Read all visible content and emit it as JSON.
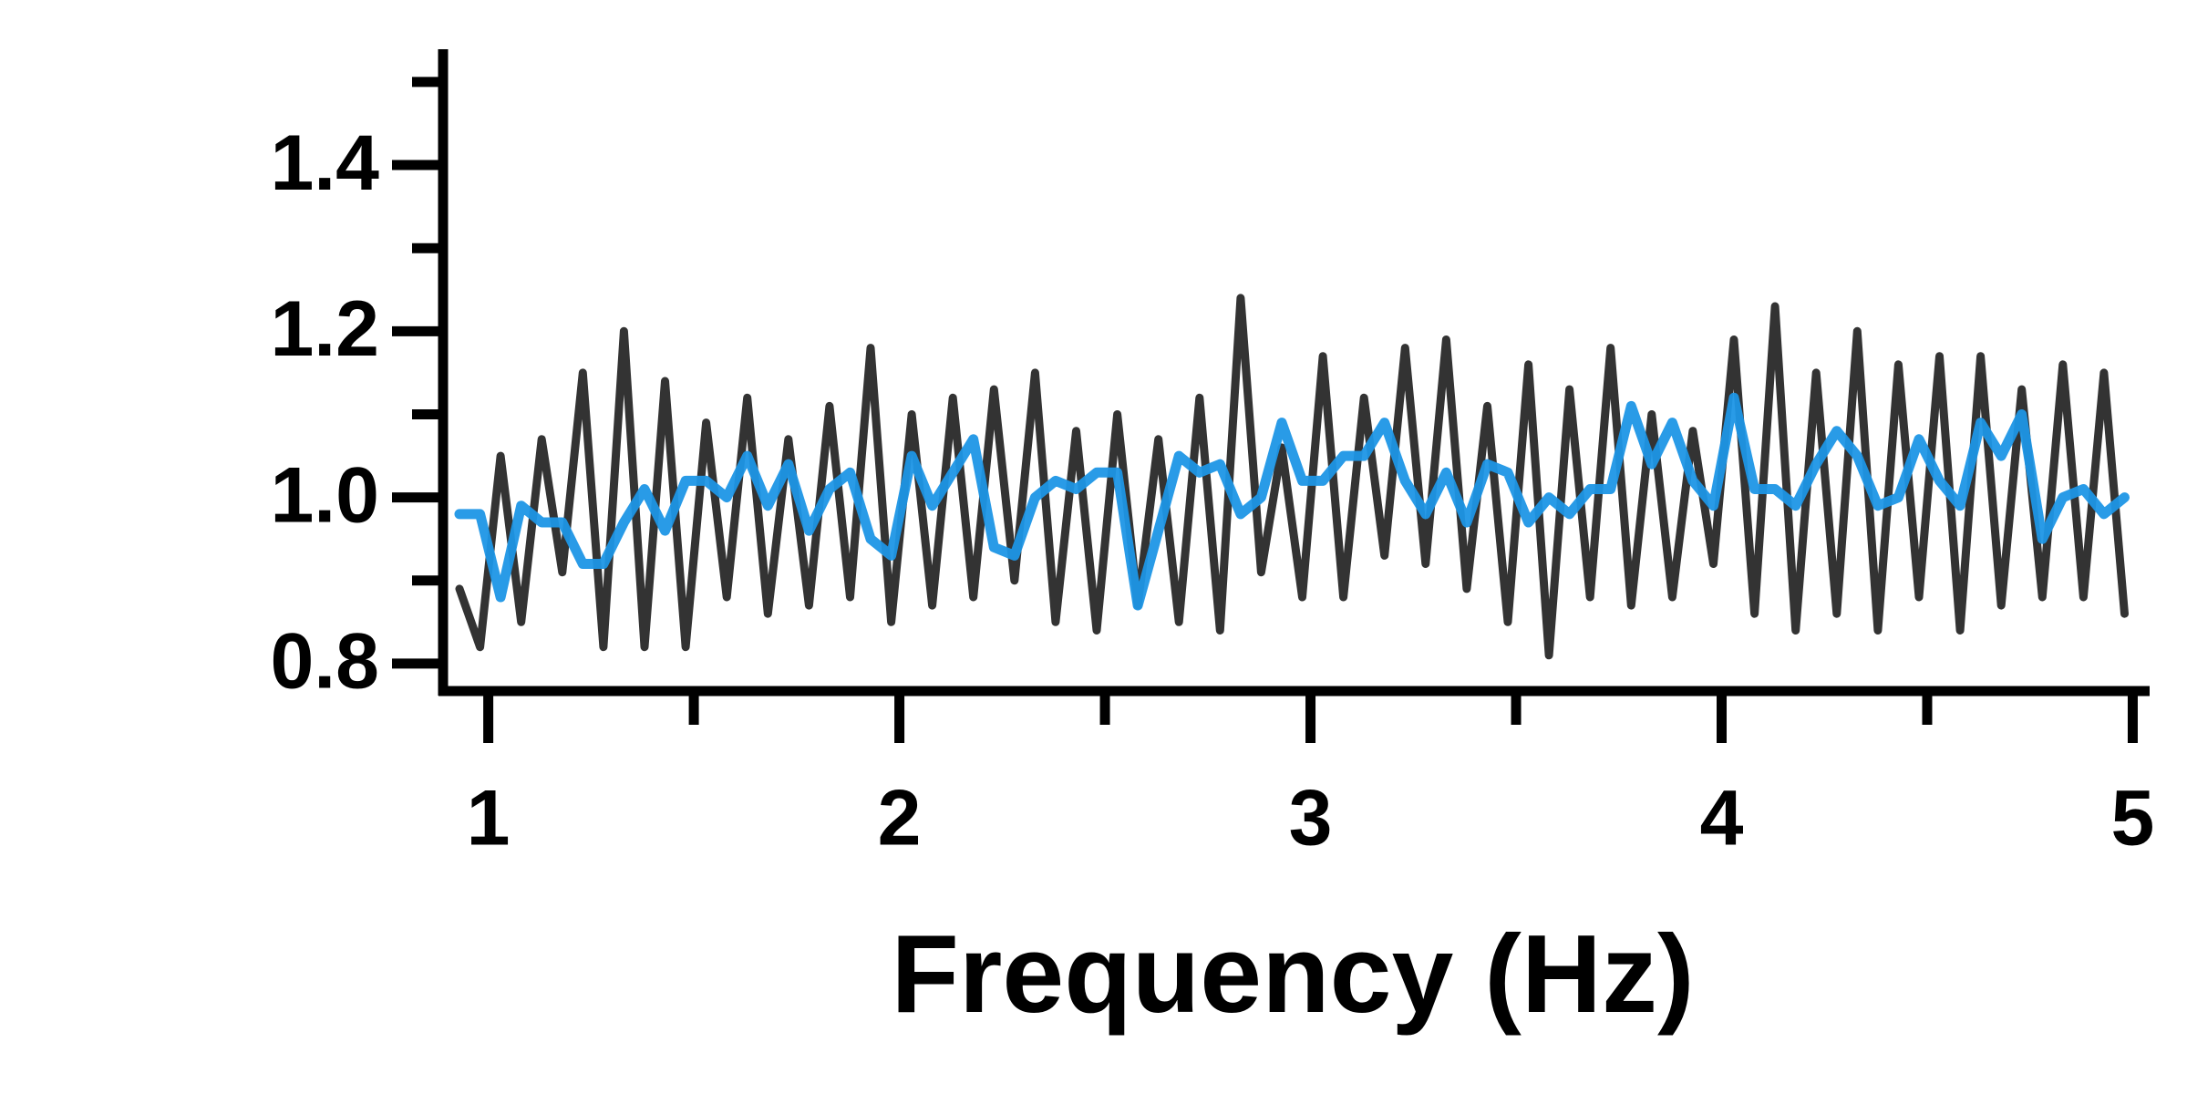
{
  "chart_data": {
    "type": "line",
    "x_label": "Frequency (Hz)",
    "x": [
      0.93,
      0.98,
      1.03,
      1.08,
      1.13,
      1.18,
      1.23,
      1.28,
      1.33,
      1.38,
      1.43,
      1.48,
      1.53,
      1.58,
      1.63,
      1.68,
      1.73,
      1.78,
      1.83,
      1.88,
      1.93,
      1.98,
      2.03,
      2.08,
      2.13,
      2.18,
      2.23,
      2.28,
      2.33,
      2.38,
      2.43,
      2.48,
      2.53,
      2.58,
      2.63,
      2.68,
      2.73,
      2.78,
      2.83,
      2.88,
      2.93,
      2.98,
      3.03,
      3.08,
      3.13,
      3.18,
      3.23,
      3.28,
      3.33,
      3.38,
      3.43,
      3.48,
      3.53,
      3.58,
      3.63,
      3.68,
      3.73,
      3.78,
      3.83,
      3.88,
      3.93,
      3.98,
      4.03,
      4.08,
      4.13,
      4.18,
      4.23,
      4.28,
      4.33,
      4.38,
      4.43,
      4.48,
      4.53,
      4.58,
      4.63,
      4.68,
      4.73,
      4.78,
      4.83,
      4.88,
      4.93,
      4.98
    ],
    "series": [
      {
        "color": "#333333",
        "values": [
          0.89,
          0.82,
          1.05,
          0.85,
          1.07,
          0.91,
          1.15,
          0.82,
          1.2,
          0.82,
          1.14,
          0.82,
          1.09,
          0.88,
          1.12,
          0.86,
          1.07,
          0.87,
          1.11,
          0.88,
          1.18,
          0.85,
          1.1,
          0.87,
          1.12,
          0.88,
          1.13,
          0.9,
          1.15,
          0.85,
          1.08,
          0.84,
          1.1,
          0.87,
          1.07,
          0.85,
          1.12,
          0.84,
          1.24,
          0.91,
          1.06,
          0.88,
          1.17,
          0.88,
          1.12,
          0.93,
          1.18,
          0.92,
          1.19,
          0.89,
          1.11,
          0.85,
          1.16,
          0.81,
          1.13,
          0.88,
          1.18,
          0.87,
          1.1,
          0.88,
          1.08,
          0.92,
          1.19,
          0.86,
          1.23,
          0.84,
          1.15,
          0.86,
          1.2,
          0.84,
          1.16,
          0.88,
          1.17,
          0.84,
          1.17,
          0.87,
          1.13,
          0.88,
          1.16,
          0.88,
          1.15,
          0.86
        ]
      },
      {
        "color": "#1e96e6",
        "values": [
          0.98,
          0.98,
          0.88,
          0.99,
          0.97,
          0.97,
          0.92,
          0.92,
          0.97,
          1.01,
          0.96,
          1.02,
          1.02,
          1.0,
          1.05,
          0.99,
          1.04,
          0.96,
          1.01,
          1.03,
          0.95,
          0.93,
          1.05,
          0.99,
          1.03,
          1.07,
          0.94,
          0.93,
          1.0,
          1.02,
          1.01,
          1.03,
          1.03,
          0.87,
          0.96,
          1.05,
          1.03,
          1.04,
          0.98,
          1.0,
          1.09,
          1.02,
          1.02,
          1.05,
          1.05,
          1.09,
          1.02,
          0.98,
          1.03,
          0.97,
          1.04,
          1.03,
          0.97,
          1.0,
          0.98,
          1.01,
          1.01,
          1.11,
          1.04,
          1.09,
          1.02,
          0.99,
          1.12,
          1.01,
          1.01,
          0.99,
          1.04,
          1.08,
          1.05,
          0.99,
          1.0,
          1.07,
          1.02,
          0.99,
          1.09,
          1.05,
          1.1,
          0.95,
          1.0,
          1.01,
          0.98,
          1.0
        ]
      }
    ],
    "xlim": [
      0.89,
      5.03
    ],
    "xticks": [
      1,
      2,
      3,
      4,
      5
    ],
    "xminorticks": [
      1.5,
      2.5,
      3.5,
      4.5
    ],
    "ylim": [
      0.767,
      1.535
    ],
    "yticks": [
      {
        "value": 0.8,
        "label": "0.8"
      },
      {
        "value": 1.0,
        "label": "1.0"
      },
      {
        "value": 1.2,
        "label": "1.2"
      },
      {
        "value": 1.4,
        "label": "1.4"
      }
    ],
    "yminorticks": [
      0.9,
      1.1,
      1.3,
      1.5
    ],
    "grid": false
  }
}
